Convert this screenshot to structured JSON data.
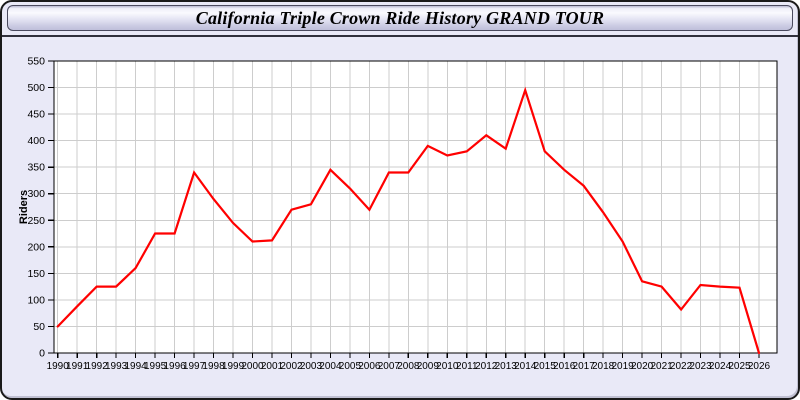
{
  "window": {
    "title": "California Triple Crown Ride History GRAND TOUR"
  },
  "colors": {
    "line": "#ff0000",
    "plot_bg": "#ffffff",
    "grid": "#cdcdcd",
    "axis": "#000000",
    "window_bg": "#e9e9f7",
    "titlebar_border": "#4a4a5e",
    "page_bg": "#ffffff"
  },
  "chart_data": {
    "type": "line",
    "title": "California Triple Crown Ride History GRAND TOUR",
    "xlabel": "",
    "ylabel": "Riders",
    "ylim": [
      0,
      550
    ],
    "ytick_step": 50,
    "grid": true,
    "legend_position": "none",
    "x": [
      1990,
      1991,
      1992,
      1993,
      1994,
      1995,
      1996,
      1997,
      1998,
      1999,
      2000,
      2001,
      2002,
      2003,
      2004,
      2005,
      2006,
      2007,
      2008,
      2009,
      2010,
      2011,
      2012,
      2013,
      2014,
      2015,
      2016,
      2017,
      2018,
      2019,
      2020,
      2021,
      2022,
      2023,
      2024,
      2025,
      2026
    ],
    "series": [
      {
        "name": "Riders",
        "color": "#ff0000",
        "values": [
          50,
          88,
          125,
          125,
          160,
          225,
          225,
          340,
          290,
          245,
          210,
          212,
          270,
          280,
          345,
          310,
          270,
          340,
          340,
          390,
          372,
          380,
          410,
          385,
          495,
          380,
          345,
          315,
          265,
          210,
          135,
          125,
          82,
          128,
          125,
          123,
          0
        ]
      }
    ]
  }
}
